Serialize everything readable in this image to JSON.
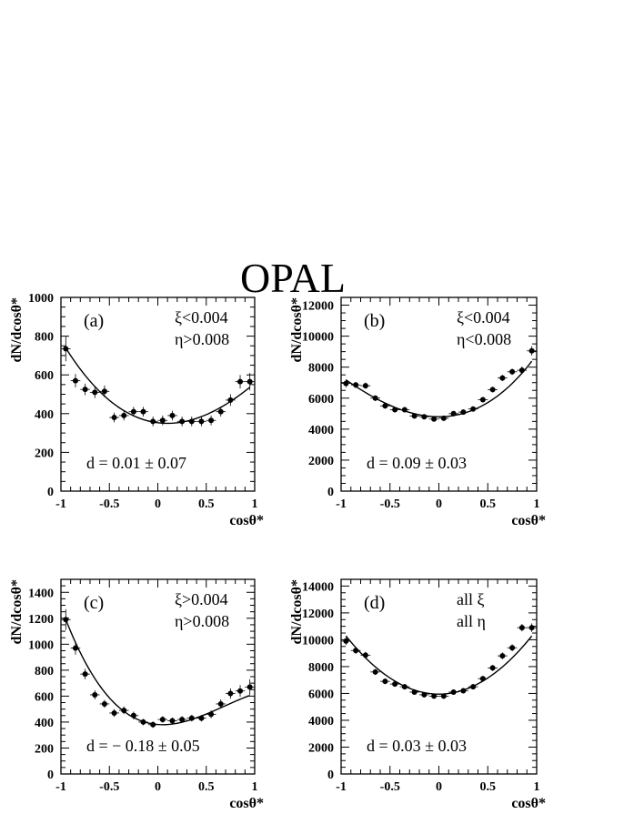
{
  "figure_title": "OPAL",
  "chart_data": [
    {
      "type": "scatter",
      "panel_label": "(a)",
      "cuts": [
        "ξ<0.004",
        "η>0.008"
      ],
      "fit_result": "d = 0.01 ± 0.07",
      "xlabel": "cosθ*",
      "ylabel": "dN/dcosθ*",
      "xlim": [
        -1,
        1
      ],
      "ylim": [
        0,
        1000
      ],
      "xticks": [
        -1,
        -0.5,
        0,
        0.5,
        1
      ],
      "xtick_labels": [
        "-1",
        "-0.5",
        "0",
        "0.5",
        "1"
      ],
      "yticks": [
        0,
        200,
        400,
        600,
        800,
        1000
      ],
      "ytick_labels": [
        "0",
        "200",
        "400",
        "600",
        "800",
        "1000"
      ],
      "x": [
        -0.95,
        -0.85,
        -0.75,
        -0.65,
        -0.55,
        -0.45,
        -0.35,
        -0.25,
        -0.15,
        -0.05,
        0.05,
        0.15,
        0.25,
        0.35,
        0.45,
        0.55,
        0.65,
        0.75,
        0.85,
        0.95
      ],
      "y": [
        735,
        570,
        525,
        510,
        515,
        380,
        390,
        410,
        410,
        360,
        365,
        390,
        360,
        360,
        360,
        365,
        410,
        470,
        565,
        565
      ],
      "yerr": [
        65,
        35,
        30,
        30,
        30,
        25,
        25,
        25,
        25,
        25,
        25,
        25,
        25,
        25,
        25,
        25,
        25,
        30,
        35,
        45
      ],
      "fit": {
        "a": 350,
        "b": 300,
        "c": -50,
        "x0": 0.1
      }
    },
    {
      "type": "scatter",
      "panel_label": "(b)",
      "cuts": [
        "ξ<0.004",
        "η<0.008"
      ],
      "fit_result": "d = 0.09 ± 0.03",
      "xlabel": "cosθ*",
      "ylabel": "dN/dcosθ*",
      "xlim": [
        -1,
        1
      ],
      "ylim": [
        0,
        12500
      ],
      "xticks": [
        -1,
        -0.5,
        0,
        0.5,
        1
      ],
      "xtick_labels": [
        "-1",
        "-0.5",
        "0",
        "0.5",
        "1"
      ],
      "yticks": [
        0,
        2000,
        4000,
        6000,
        8000,
        10000,
        12000
      ],
      "ytick_labels": [
        "0",
        "2000",
        "4000",
        "6000",
        "8000",
        "10000",
        "12000"
      ],
      "x": [
        -0.95,
        -0.85,
        -0.75,
        -0.65,
        -0.55,
        -0.45,
        -0.35,
        -0.25,
        -0.15,
        -0.05,
        0.05,
        0.15,
        0.25,
        0.35,
        0.45,
        0.55,
        0.65,
        0.75,
        0.85,
        0.95
      ],
      "y": [
        6950,
        6850,
        6800,
        6000,
        5500,
        5250,
        5250,
        4850,
        4800,
        4650,
        4700,
        5000,
        5100,
        5300,
        5900,
        6550,
        7300,
        7700,
        7800,
        9050
      ],
      "yerr": [
        250,
        200,
        200,
        180,
        180,
        170,
        170,
        160,
        160,
        160,
        160,
        160,
        160,
        170,
        180,
        180,
        200,
        200,
        250,
        300
      ],
      "fit": {
        "a": 4800,
        "b": 3300,
        "c": 700,
        "x0": 0.0
      }
    },
    {
      "type": "scatter",
      "panel_label": "(c)",
      "cuts": [
        "ξ>0.004",
        "η>0.008"
      ],
      "fit_result": "d = − 0.18 ± 0.05",
      "xlabel": "cosθ*",
      "ylabel": "dN/dcosθ*",
      "xlim": [
        -1,
        1
      ],
      "ylim": [
        0,
        1500
      ],
      "xticks": [
        -1,
        -0.5,
        0,
        0.5,
        1
      ],
      "xtick_labels": [
        "-1",
        "-0.5",
        "0",
        "0.5",
        "1"
      ],
      "yticks": [
        0,
        200,
        400,
        600,
        800,
        1000,
        1200,
        1400
      ],
      "ytick_labels": [
        "0",
        "200",
        "400",
        "600",
        "800",
        "1000",
        "1200",
        "1400"
      ],
      "x": [
        -0.95,
        -0.85,
        -0.75,
        -0.65,
        -0.55,
        -0.45,
        -0.35,
        -0.25,
        -0.15,
        -0.05,
        0.05,
        0.15,
        0.25,
        0.35,
        0.45,
        0.55,
        0.65,
        0.75,
        0.85,
        0.95
      ],
      "y": [
        1190,
        970,
        770,
        610,
        540,
        470,
        490,
        450,
        400,
        380,
        420,
        410,
        420,
        430,
        430,
        460,
        540,
        620,
        640,
        670
      ],
      "yerr": [
        80,
        50,
        40,
        35,
        30,
        30,
        30,
        30,
        25,
        25,
        25,
        25,
        25,
        25,
        25,
        30,
        35,
        40,
        45,
        60
      ],
      "fit": {
        "a": 380,
        "b": 530,
        "c": -280,
        "x0": 0.05
      }
    },
    {
      "type": "scatter",
      "panel_label": "(d)",
      "cuts": [
        "all ξ",
        "all η"
      ],
      "fit_result": "d = 0.03 ± 0.03",
      "xlabel": "cosθ*",
      "ylabel": "dN/dcosθ*",
      "xlim": [
        -1,
        1
      ],
      "ylim": [
        0,
        14500
      ],
      "xticks": [
        -1,
        -0.5,
        0,
        0.5,
        1
      ],
      "xtick_labels": [
        "-1",
        "-0.5",
        "0",
        "0.5",
        "1"
      ],
      "yticks": [
        0,
        2000,
        4000,
        6000,
        8000,
        10000,
        12000,
        14000
      ],
      "ytick_labels": [
        "0",
        "2000",
        "4000",
        "6000",
        "8000",
        "10000",
        "12000",
        "14000"
      ],
      "x": [
        -0.95,
        -0.85,
        -0.75,
        -0.65,
        -0.55,
        -0.45,
        -0.35,
        -0.25,
        -0.15,
        -0.05,
        0.05,
        0.15,
        0.25,
        0.35,
        0.45,
        0.55,
        0.65,
        0.75,
        0.85,
        0.95
      ],
      "y": [
        9900,
        9200,
        8850,
        7600,
        6900,
        6700,
        6500,
        6100,
        5900,
        5800,
        5800,
        6100,
        6200,
        6500,
        7100,
        7900,
        8800,
        9400,
        10900,
        10900
      ],
      "yerr": [
        300,
        250,
        250,
        220,
        210,
        200,
        200,
        190,
        190,
        190,
        190,
        190,
        190,
        200,
        210,
        220,
        250,
        260,
        280,
        320
      ],
      "fit": {
        "a": 5950,
        "b": 4800,
        "c": 0,
        "x0": 0.0
      }
    }
  ]
}
